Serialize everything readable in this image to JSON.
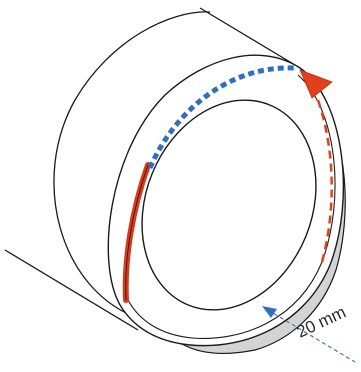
{
  "dimension": {
    "label": "20 mm",
    "color": "#3d7cc9"
  },
  "colors": {
    "outline": "#1a1a1a",
    "face": "#ffffff",
    "inner_band": "#d4d4d4",
    "tape_blue": "#2f6fbf",
    "tape_red": "#e0401c",
    "red_stripe": "#d93a1a"
  },
  "icons": {
    "direction_arrow": "arrow-up-left-icon"
  }
}
